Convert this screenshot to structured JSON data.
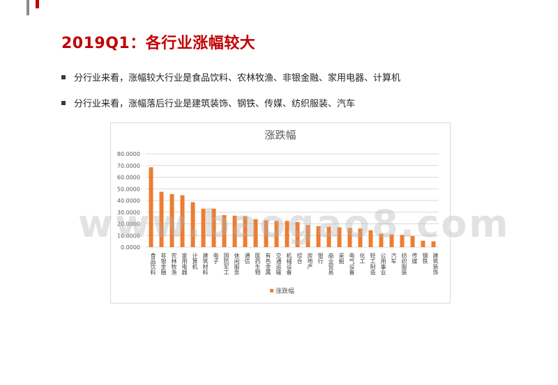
{
  "slide": {
    "title": "2019Q1：各行业涨幅较大",
    "bullets": [
      "分行业来看，涨幅较大行业是食品饮料、农林牧渔、非银金融、家用电器、计算机",
      "分行业来看，涨幅落后行业是建筑装饰、钢铁、传媒、纺织服装、汽车"
    ],
    "watermark": "www.baogao8.com"
  },
  "colors": {
    "accent": "#c00000",
    "bar": "#ed7d31",
    "grid": "#d9d9d9",
    "text": "#595959"
  },
  "chart_data": {
    "type": "bar",
    "title": "涨跌幅",
    "categories": [
      "食品饮料",
      "非银金融",
      "农林牧渔",
      "家用电器",
      "计算机",
      "建筑材料",
      "电子",
      "国防军工",
      "休闲服务",
      "通信",
      "医药生物",
      "有色金属",
      "交通运输",
      "机械设备",
      "综合",
      "房地产",
      "银行",
      "商业贸易",
      "采掘",
      "电气设备",
      "化工",
      "轻工制造",
      "公用事业",
      "汽车",
      "纺织服装",
      "传媒",
      "钢铁",
      "建筑装饰"
    ],
    "series": [
      {
        "name": "涨跌幅",
        "values": [
          68.5,
          47.5,
          45.5,
          44.5,
          38.5,
          33.0,
          33.0,
          27.5,
          27.0,
          26.5,
          24.0,
          23.0,
          22.5,
          22.5,
          21.5,
          19.0,
          18.0,
          17.5,
          17.0,
          16.5,
          16.0,
          14.5,
          11.5,
          11.0,
          10.5,
          9.5,
          5.5,
          5.0
        ]
      }
    ],
    "yticks": [
      "80.0000",
      "70.0000",
      "60.0000",
      "50.0000",
      "40.0000",
      "30.0000",
      "20.0000",
      "10.0000",
      "0.0000"
    ],
    "ylim": [
      0,
      80
    ],
    "legend": "bottom",
    "grid": true
  }
}
